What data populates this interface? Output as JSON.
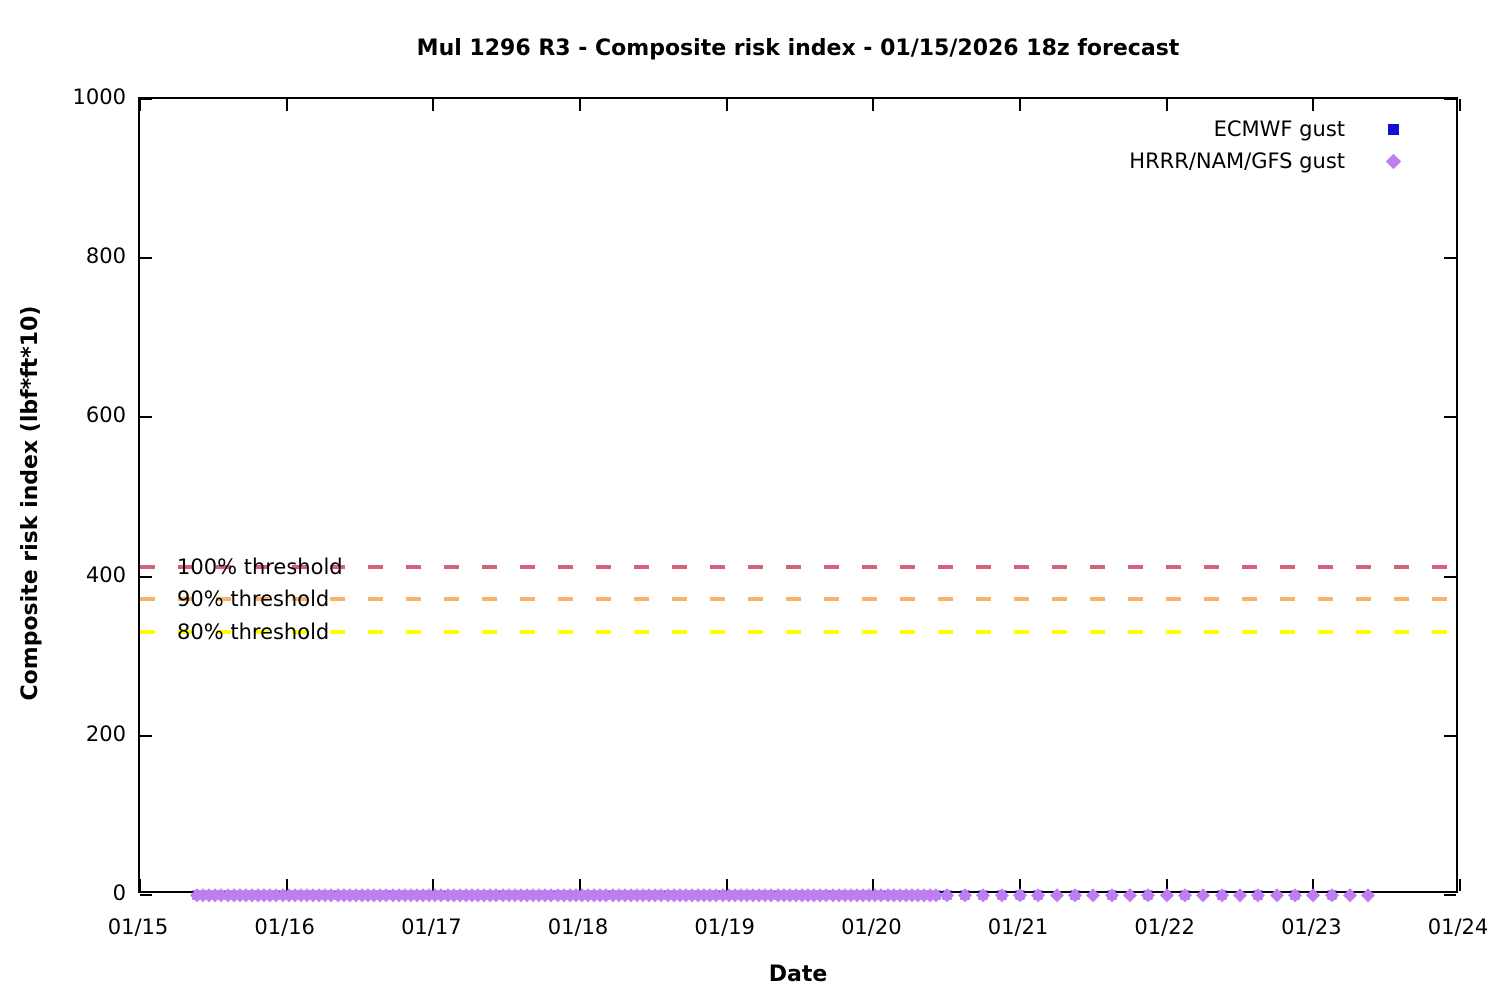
{
  "title": "Mul 1296 R3 - Composite risk index - 01/15/2026 18z forecast",
  "legend": {
    "entries": [
      {
        "label": "ECMWF gust",
        "marker": "square-icon",
        "color": "#1410cd"
      },
      {
        "label": "HRRR/NAM/GFS gust",
        "marker": "diamond-icon",
        "color": "#be7df0"
      }
    ]
  },
  "chart_data": {
    "type": "scatter",
    "title": "Mul 1296 R3 - Composite risk index - 01/15/2026 18z forecast",
    "xlabel": "Date",
    "ylabel": "Composite risk index (lbf*ft*10)",
    "x_tick_labels": [
      "01/15",
      "01/16",
      "01/17",
      "01/18",
      "01/19",
      "01/20",
      "01/21",
      "01/22",
      "01/23",
      "01/24"
    ],
    "y_tick_labels": [
      "0",
      "200",
      "400",
      "600",
      "800",
      "1000"
    ],
    "y_tick_values": [
      0,
      200,
      400,
      600,
      800,
      1000
    ],
    "ylim": [
      0,
      1000
    ],
    "xlim_days": [
      0,
      9
    ],
    "grid": false,
    "legend_position": "top-right-inside",
    "thresholds": [
      {
        "label": "100% threshold",
        "value": 412.5,
        "color": "#d6617b"
      },
      {
        "label": "90% threshold",
        "value": 371.3,
        "color": "#fab16b"
      },
      {
        "label": "80% threshold",
        "value": 330.0,
        "color": "#ffff00"
      }
    ],
    "series": [
      {
        "name": "ECMWF gust",
        "marker": "square",
        "color": "#1410cd",
        "value": 0,
        "segments": [
          {
            "start_day": 0.389,
            "end_day": 5.431,
            "step_hours": 1
          },
          {
            "start_day": 5.5,
            "end_day": 6.125,
            "step_hours": 3
          },
          {
            "start_day": 6.375,
            "end_day": 8.125,
            "step_hours": 6
          }
        ]
      },
      {
        "name": "HRRR/NAM/GFS gust",
        "marker": "diamond",
        "color": "#be7df0",
        "value": 0,
        "segments": [
          {
            "start_day": 0.389,
            "end_day": 5.431,
            "step_hours": 1
          },
          {
            "start_day": 5.5,
            "end_day": 6.125,
            "step_hours": 3
          },
          {
            "start_day": 6.25,
            "end_day": 8.375,
            "step_hours": 3
          }
        ]
      }
    ]
  }
}
